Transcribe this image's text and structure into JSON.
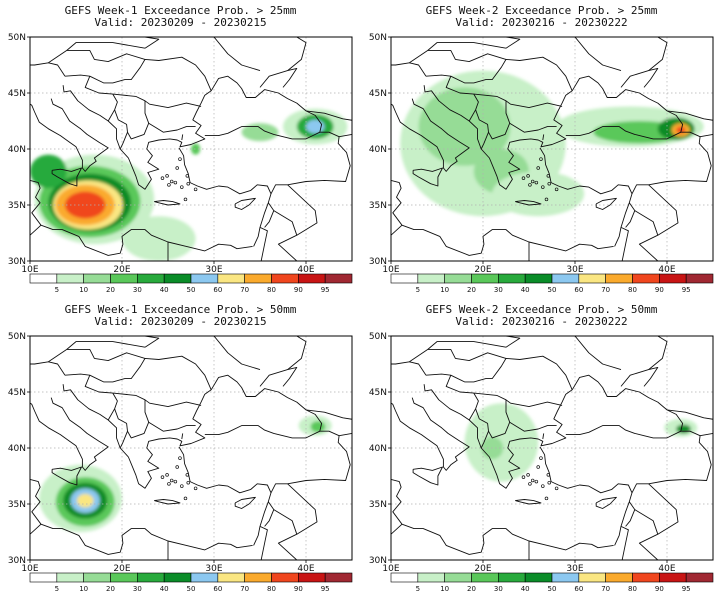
{
  "colors": {
    "5": "#ffffff",
    "10": "#c8f0c8",
    "20": "#96dc96",
    "30": "#5ac85a",
    "40": "#28aa3c",
    "50": "#0a8c28",
    "60": "#8cc8f0",
    "70": "#fae682",
    "80": "#faaa2d",
    "90": "#f0461e",
    "95": "#c81414",
    "100": "#a02832"
  },
  "colorbar_ticks": [
    "5",
    "10",
    "20",
    "30",
    "40",
    "50",
    "60",
    "70",
    "80",
    "90",
    "95"
  ],
  "lon_labels": [
    "10E",
    "20E",
    "30E",
    "40E"
  ],
  "lat_labels": [
    "50N",
    "45N",
    "40N",
    "35N",
    "30N"
  ],
  "panels": [
    {
      "line1": "GEFS Week-1 Exceedance Prob. > 25mm",
      "line2": "Valid: 20230209 - 20230215"
    },
    {
      "line1": "GEFS Week-2 Exceedance Prob. > 25mm",
      "line2": "Valid: 20230216 - 20230222"
    },
    {
      "line1": "GEFS Week-1 Exceedance Prob. > 50mm",
      "line2": "Valid: 20230209 - 20230215"
    },
    {
      "line1": "GEFS Week-2 Exceedance Prob. > 50mm",
      "line2": "Valid: 20230216 - 20230222"
    }
  ],
  "precip_regions": [
    [
      {
        "lon": 17,
        "lat": 35.5,
        "rlon": 6.5,
        "rlat": 4.0,
        "level": "10"
      },
      {
        "lon": 24,
        "lat": 32.0,
        "rlon": 4.0,
        "rlat": 2.0,
        "level": "10"
      },
      {
        "lon": 16.5,
        "lat": 35.3,
        "rlon": 5.5,
        "rlat": 3.2,
        "level": "30"
      },
      {
        "lon": 16.5,
        "lat": 35.2,
        "rlon": 4.5,
        "rlat": 2.6,
        "level": "50"
      },
      {
        "lon": 16.3,
        "lat": 35.0,
        "rlon": 3.8,
        "rlat": 2.2,
        "level": "70"
      },
      {
        "lon": 16.0,
        "lat": 35.0,
        "rlon": 3.2,
        "rlat": 1.8,
        "level": "80"
      },
      {
        "lon": 16.0,
        "lat": 35.0,
        "rlon": 2.2,
        "rlat": 1.2,
        "level": "90"
      },
      {
        "lon": 41.0,
        "lat": 42.0,
        "rlon": 3.5,
        "rlat": 1.6,
        "level": "10"
      },
      {
        "lon": 41.0,
        "lat": 42.0,
        "rlon": 2.0,
        "rlat": 1.1,
        "level": "40"
      },
      {
        "lon": 41.0,
        "lat": 42.0,
        "rlon": 1.0,
        "rlat": 0.6,
        "level": "60"
      },
      {
        "lon": 35.0,
        "lat": 41.5,
        "rlon": 2.0,
        "rlat": 0.8,
        "level": "20"
      },
      {
        "lon": 12.0,
        "lat": 38.0,
        "rlon": 2.0,
        "rlat": 1.5,
        "level": "40"
      },
      {
        "lon": 28.0,
        "lat": 40.0,
        "rlon": 0.5,
        "rlat": 0.5,
        "level": "30"
      }
    ],
    [
      {
        "lon": 20,
        "lat": 40.5,
        "rlon": 9.0,
        "rlat": 6.5,
        "level": "10"
      },
      {
        "lon": 18,
        "lat": 42.0,
        "rlon": 5.0,
        "rlat": 3.5,
        "level": "20"
      },
      {
        "lon": 22,
        "lat": 38.0,
        "rlon": 3.0,
        "rlat": 2.0,
        "level": "20"
      },
      {
        "lon": 36,
        "lat": 42.0,
        "rlon": 8.0,
        "rlat": 1.8,
        "level": "10"
      },
      {
        "lon": 37,
        "lat": 41.5,
        "rlon": 5.0,
        "rlat": 1.0,
        "level": "30"
      },
      {
        "lon": 41,
        "lat": 41.8,
        "rlon": 2.0,
        "rlat": 1.0,
        "level": "50"
      },
      {
        "lon": 41.5,
        "lat": 41.7,
        "rlon": 1.0,
        "rlat": 0.6,
        "level": "80"
      },
      {
        "lon": 41.5,
        "lat": 41.7,
        "rlon": 0.5,
        "rlat": 0.3,
        "level": "90"
      },
      {
        "lon": 26,
        "lat": 36.0,
        "rlon": 5.0,
        "rlat": 2.0,
        "level": "10"
      }
    ],
    [
      {
        "lon": 15.5,
        "lat": 35.5,
        "rlon": 4.5,
        "rlat": 3.0,
        "level": "10"
      },
      {
        "lon": 16.0,
        "lat": 35.2,
        "rlon": 3.2,
        "rlat": 2.2,
        "level": "30"
      },
      {
        "lon": 16.0,
        "lat": 35.3,
        "rlon": 2.4,
        "rlat": 1.6,
        "level": "50"
      },
      {
        "lon": 16.0,
        "lat": 35.3,
        "rlon": 1.6,
        "rlat": 1.1,
        "level": "60"
      },
      {
        "lon": 16.0,
        "lat": 35.3,
        "rlon": 0.9,
        "rlat": 0.6,
        "level": "70"
      },
      {
        "lon": 41.0,
        "lat": 42.0,
        "rlon": 1.8,
        "rlat": 0.9,
        "level": "10"
      },
      {
        "lon": 41.3,
        "lat": 41.9,
        "rlon": 0.8,
        "rlat": 0.5,
        "level": "30"
      }
    ],
    [
      {
        "lon": 22,
        "lat": 40.5,
        "rlon": 4.0,
        "rlat": 3.5,
        "level": "10"
      },
      {
        "lon": 21,
        "lat": 40.0,
        "rlon": 1.2,
        "rlat": 1.0,
        "level": "20"
      },
      {
        "lon": 41.5,
        "lat": 41.8,
        "rlon": 1.8,
        "rlat": 0.8,
        "level": "10"
      },
      {
        "lon": 41.8,
        "lat": 41.7,
        "rlon": 0.8,
        "rlat": 0.4,
        "level": "50"
      }
    ]
  ]
}
